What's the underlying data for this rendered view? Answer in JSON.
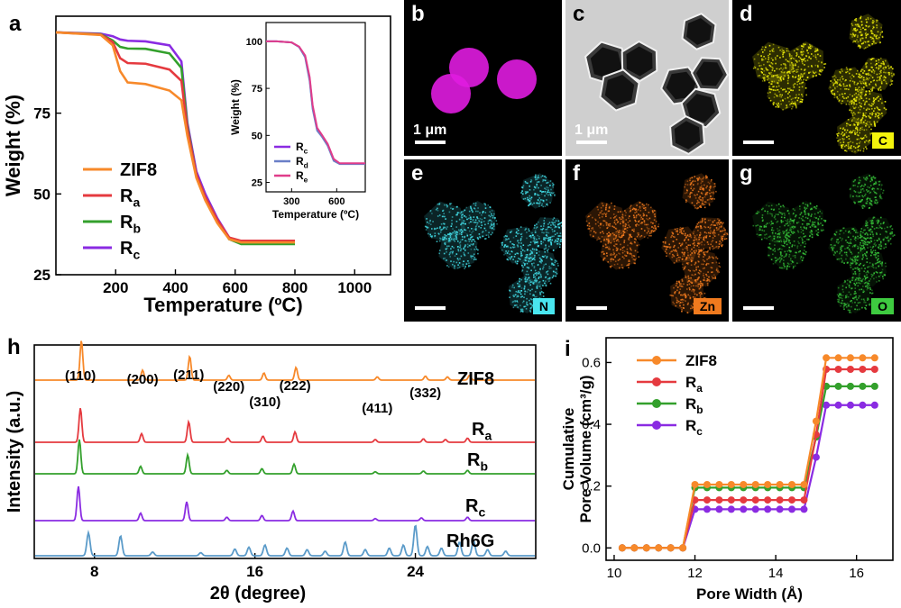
{
  "colors": {
    "zif8": "#f7892a",
    "ra": "#e53a3f",
    "rb": "#33a02c",
    "rc": "#8a2be2",
    "rd": "#6a7fc7",
    "re": "#e03c8a",
    "rh6g": "#5b9bc9",
    "map_c": "#f2f20a",
    "map_n": "#43e0ea",
    "map_zn": "#f07a1e",
    "map_o": "#37c43a",
    "map_b": "#e01ce0"
  },
  "panels": {
    "a": {
      "label": "a"
    },
    "b": {
      "label": "b",
      "scale": "1 μm"
    },
    "c": {
      "label": "c",
      "scale": "1 μm"
    },
    "d": {
      "label": "d",
      "element": "C"
    },
    "e": {
      "label": "e",
      "element": "N"
    },
    "f": {
      "label": "f",
      "element": "Zn"
    },
    "g": {
      "label": "g",
      "element": "O"
    },
    "h": {
      "label": "h"
    },
    "i": {
      "label": "i"
    }
  },
  "chart_data": [
    {
      "id": "a-main",
      "type": "line",
      "xlabel": "Temperature (ºC)",
      "ylabel": "Weight (%)",
      "xlim": [
        0,
        1120
      ],
      "ylim": [
        25,
        105
      ],
      "xticks": [
        200,
        400,
        600,
        800,
        1000
      ],
      "yticks": [
        25,
        50,
        75
      ],
      "legend": {
        "placement": "bottom-left",
        "entries": [
          "ZIF8",
          "Ra",
          "Rb",
          "Rc"
        ]
      },
      "series": [
        {
          "name": "ZIF8",
          "x": [
            0,
            150,
            190,
            215,
            240,
            300,
            380,
            420,
            440,
            470,
            500,
            540,
            580,
            620,
            800
          ],
          "y": [
            100,
            99.2,
            96,
            88,
            84.5,
            84,
            82,
            79,
            68,
            55,
            48,
            41,
            36,
            35,
            35
          ]
        },
        {
          "name": "Ra",
          "x": [
            0,
            150,
            190,
            215,
            240,
            300,
            380,
            420,
            440,
            470,
            500,
            540,
            580,
            620,
            800
          ],
          "y": [
            100,
            99.3,
            97,
            92,
            90.5,
            90.3,
            88.5,
            85,
            70,
            56,
            49,
            42,
            36.5,
            35.5,
            35.5
          ]
        },
        {
          "name": "Rb",
          "x": [
            0,
            150,
            190,
            215,
            240,
            300,
            380,
            420,
            440,
            470,
            500,
            540,
            580,
            620,
            800
          ],
          "y": [
            100,
            99.4,
            97.5,
            95.5,
            95,
            94.9,
            93.5,
            89,
            71,
            56,
            49,
            42,
            36,
            34.5,
            34.5
          ]
        },
        {
          "name": "Rc",
          "x": [
            0,
            150,
            190,
            215,
            240,
            300,
            380,
            420,
            440,
            470,
            500,
            540,
            580,
            620,
            800
          ],
          "y": [
            100,
            99.6,
            98.8,
            97.8,
            97.4,
            97.2,
            96,
            91,
            72,
            57,
            50,
            42.5,
            36.5,
            35,
            35
          ]
        }
      ]
    },
    {
      "id": "a-inset",
      "type": "line",
      "xlabel": "Temperature (ºC)",
      "ylabel": "Weight (%)",
      "xlim": [
        130,
        790
      ],
      "ylim": [
        20,
        110
      ],
      "xticks": [
        300,
        600
      ],
      "yticks": [
        25,
        50,
        75,
        100
      ],
      "legend": {
        "placement": "bottom-left",
        "entries": [
          "Rc",
          "Rd",
          "Re"
        ]
      },
      "series": [
        {
          "name": "Rc",
          "x": [
            130,
            200,
            300,
            350,
            390,
            420,
            440,
            470,
            500,
            540,
            580,
            620,
            790
          ],
          "y": [
            100,
            100,
            99.4,
            97,
            92,
            80,
            65,
            53,
            50,
            45,
            37,
            35,
            35
          ]
        },
        {
          "name": "Rd",
          "x": [
            130,
            200,
            300,
            350,
            390,
            420,
            440,
            470,
            500,
            540,
            580,
            620,
            790
          ],
          "y": [
            100,
            100,
            99.4,
            97,
            91.5,
            79,
            64,
            52.5,
            49.5,
            44.5,
            36.5,
            34.8,
            34.8
          ]
        },
        {
          "name": "Re",
          "x": [
            130,
            200,
            300,
            350,
            390,
            420,
            440,
            470,
            500,
            540,
            580,
            620,
            790
          ],
          "y": [
            100,
            100,
            99.4,
            97.2,
            92.5,
            81,
            66,
            54,
            50.5,
            45.5,
            37.5,
            35.2,
            35.2
          ]
        }
      ]
    },
    {
      "id": "h-xrd",
      "type": "line",
      "xlabel": "2θ (degree)",
      "ylabel": "Intensity (a.u.)",
      "xlim": [
        5,
        30
      ],
      "xticks": [
        8,
        16,
        24
      ],
      "peak_labels": [
        {
          "text": "(110)",
          "x": 7.3
        },
        {
          "text": "(200)",
          "x": 10.4
        },
        {
          "text": "(211)",
          "x": 12.7
        },
        {
          "text": "(220)",
          "x": 14.7
        },
        {
          "text": "(310)",
          "x": 16.5
        },
        {
          "text": "(222)",
          "x": 18.0
        },
        {
          "text": "(411)",
          "x": 22.1
        },
        {
          "text": "(332)",
          "x": 24.5
        }
      ],
      "series": [
        {
          "name": "ZIF8",
          "peaks": [
            [
              7.35,
              1.0
            ],
            [
              10.4,
              0.25
            ],
            [
              12.75,
              0.6
            ],
            [
              14.7,
              0.12
            ],
            [
              16.45,
              0.18
            ],
            [
              18.05,
              0.32
            ],
            [
              22.1,
              0.08
            ],
            [
              24.5,
              0.1
            ],
            [
              25.6,
              0.08
            ],
            [
              26.7,
              0.12
            ]
          ]
        },
        {
          "name": "Ra",
          "peaks": [
            [
              7.3,
              1.0
            ],
            [
              10.35,
              0.25
            ],
            [
              12.7,
              0.6
            ],
            [
              14.65,
              0.12
            ],
            [
              16.4,
              0.18
            ],
            [
              18.0,
              0.3
            ],
            [
              22.0,
              0.08
            ],
            [
              24.4,
              0.1
            ],
            [
              25.5,
              0.08
            ],
            [
              26.6,
              0.12
            ]
          ]
        },
        {
          "name": "Rb",
          "peaks": [
            [
              7.25,
              1.0
            ],
            [
              10.3,
              0.22
            ],
            [
              12.65,
              0.55
            ],
            [
              14.6,
              0.1
            ],
            [
              16.35,
              0.15
            ],
            [
              17.95,
              0.28
            ],
            [
              22.0,
              0.06
            ],
            [
              24.4,
              0.08
            ],
            [
              26.6,
              0.1
            ]
          ]
        },
        {
          "name": "Rc",
          "peaks": [
            [
              7.2,
              1.0
            ],
            [
              10.3,
              0.22
            ],
            [
              12.6,
              0.55
            ],
            [
              14.6,
              0.1
            ],
            [
              16.35,
              0.15
            ],
            [
              17.9,
              0.28
            ],
            [
              22.0,
              0.06
            ],
            [
              24.3,
              0.08
            ],
            [
              26.6,
              0.1
            ]
          ]
        },
        {
          "name": "Rh6G",
          "peaks": [
            [
              7.7,
              0.75
            ],
            [
              9.3,
              0.65
            ],
            [
              10.9,
              0.12
            ],
            [
              13.3,
              0.1
            ],
            [
              15.0,
              0.22
            ],
            [
              15.7,
              0.28
            ],
            [
              16.5,
              0.35
            ],
            [
              17.6,
              0.25
            ],
            [
              18.6,
              0.2
            ],
            [
              19.5,
              0.15
            ],
            [
              20.5,
              0.45
            ],
            [
              21.5,
              0.2
            ],
            [
              22.7,
              0.25
            ],
            [
              23.4,
              0.35
            ],
            [
              24.0,
              1.0
            ],
            [
              24.6,
              0.3
            ],
            [
              25.3,
              0.25
            ],
            [
              26.2,
              0.45
            ],
            [
              26.9,
              0.5
            ],
            [
              27.6,
              0.2
            ],
            [
              28.5,
              0.15
            ]
          ]
        }
      ]
    },
    {
      "id": "i-pore",
      "type": "line",
      "xlabel": "Pore Width (Å)",
      "ylabel": "Cumulative\nPore Volume (cm³/g)",
      "ylabel_lines": [
        "Cumulative",
        "Pore Volume (cm³/g)"
      ],
      "xlim": [
        9.8,
        16.9
      ],
      "ylim": [
        -0.04,
        0.68
      ],
      "xticks": [
        10,
        12,
        14,
        16
      ],
      "yticks": [
        0.0,
        0.2,
        0.4,
        0.6
      ],
      "legend": {
        "placement": "top-left",
        "entries": [
          "ZIF8",
          "Ra",
          "Rb",
          "Rc"
        ]
      },
      "series": [
        {
          "name": "ZIF8",
          "plateau1": 0.205,
          "plateau2": 0.615
        },
        {
          "name": "Ra",
          "plateau1": 0.155,
          "plateau2": 0.578
        },
        {
          "name": "Rb",
          "plateau1": 0.195,
          "plateau2": 0.523
        },
        {
          "name": "Rc",
          "plateau1": 0.125,
          "plateau2": 0.462
        }
      ]
    }
  ]
}
